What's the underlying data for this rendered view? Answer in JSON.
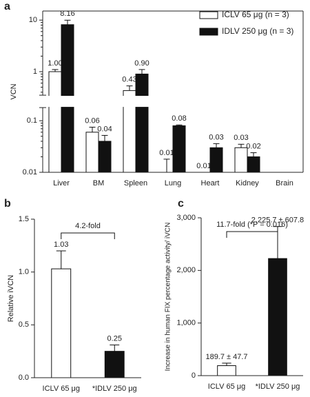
{
  "chart_data": [
    {
      "type": "bar",
      "panel_label": "a",
      "ylabel": "VCN",
      "categories": [
        "Liver",
        "BM",
        "Spleen",
        "Lung",
        "Heart",
        "Kidney",
        "Brain"
      ],
      "series": [
        {
          "name": "ICLV 65 μg (n = 3)",
          "color": "#ffffff",
          "values": [
            1.0,
            0.06,
            0.43,
            0.01,
            0.01,
            0.03,
            null
          ],
          "value_labels": [
            "1.00",
            "0.06",
            "0.43",
            "0.01",
            "0.01",
            "0.03",
            null
          ],
          "errors": [
            0.1,
            0.015,
            0.1,
            0.008,
            0,
            0.005,
            null
          ]
        },
        {
          "name": "IDLV 250 μg (n = 3)",
          "color": "#111111",
          "values": [
            8.16,
            0.04,
            0.9,
            0.08,
            0.03,
            0.02,
            null
          ],
          "value_labels": [
            "8.16",
            "0.04",
            "0.90",
            "0.08",
            "0.03",
            "0.02",
            null
          ],
          "errors": [
            1.8,
            0.012,
            0.2,
            0.003,
            0.006,
            0.004,
            null
          ]
        }
      ],
      "log_scale": true,
      "axis_break": [
        0.18,
        0.35
      ],
      "ylim": [
        0.01,
        15
      ],
      "yticks": [
        0.01,
        0.1,
        1,
        10
      ],
      "legend": "upper right"
    },
    {
      "type": "bar",
      "panel_label": "b",
      "ylabel": "Relative iVCN",
      "categories": [
        "ICLV 65 μg",
        "*IDLV 250 μg"
      ],
      "values": [
        1.03,
        0.25
      ],
      "errors": [
        0.17,
        0.06
      ],
      "colors": [
        "#ffffff",
        "#111111"
      ],
      "ylim": [
        0,
        1.5
      ],
      "yticks": [
        {
          "value": 0,
          "label": "0.0"
        },
        0.5,
        {
          "value": 1,
          "label": "1.0"
        },
        1.5
      ],
      "annotation": "4.2-fold"
    },
    {
      "type": "bar",
      "panel_label": "c",
      "ylabel": "Increase in human FIX percentage activity/ iVCN",
      "categories": [
        "ICLV 65 μg",
        "*IDLV 250 μg"
      ],
      "values": [
        189.7,
        2225.7
      ],
      "errors": [
        47.7,
        607.8
      ],
      "value_labels": [
        "189.7 ± 47.7",
        "2,225.7 ± 607.8"
      ],
      "colors": [
        "#ffffff",
        "#111111"
      ],
      "ylim": [
        0,
        3000
      ],
      "yticks": [
        0,
        {
          "value": 1000,
          "label": "1,000"
        },
        {
          "value": 2000,
          "label": "2,000"
        },
        {
          "value": 3000,
          "label": "3,000"
        }
      ],
      "annotation": "11.7-fold (*P = 0.016)"
    }
  ]
}
